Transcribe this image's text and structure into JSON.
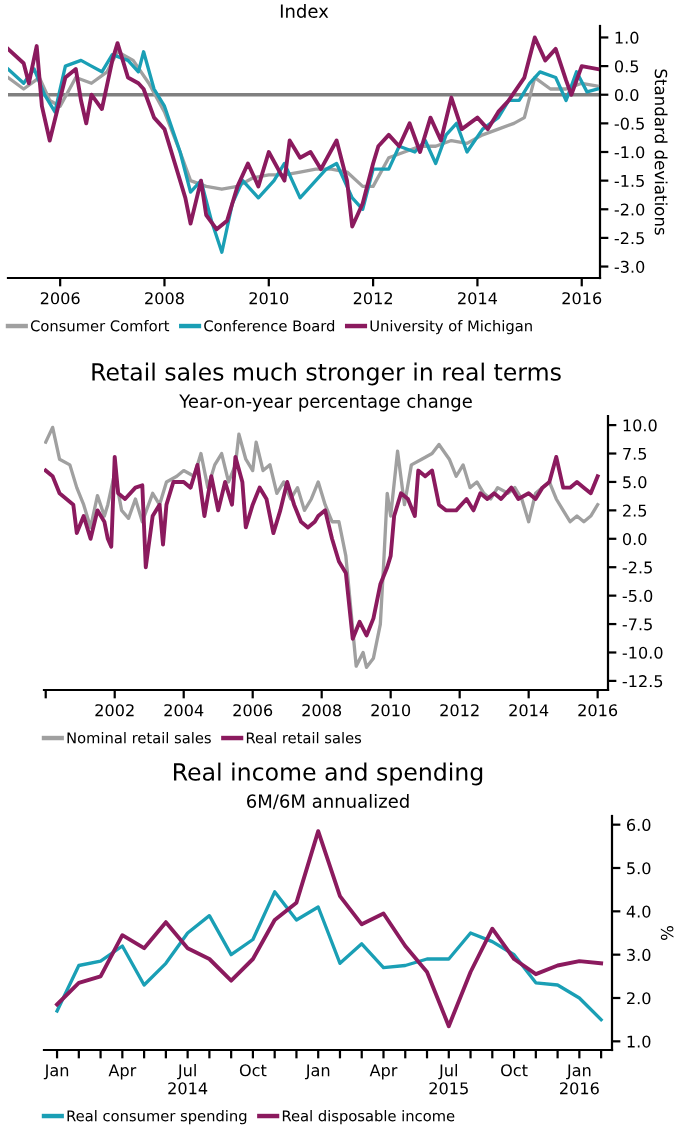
{
  "chart_data": [
    {
      "type": "line",
      "subtitle": "Index",
      "ylabel": "Standard deviations",
      "legend": "bottom",
      "xlim": [
        2005.0,
        2016.35
      ],
      "ylim": [
        -3.2,
        1.2
      ],
      "xticks": [
        2006,
        2008,
        2010,
        2012,
        2014,
        2016
      ],
      "yticks": [
        {
          "value": 1,
          "label": "1.0"
        },
        0.5,
        {
          "value": 0,
          "label": "0.0"
        },
        -0.5,
        {
          "value": -1,
          "label": "-1.0"
        },
        -1.5,
        {
          "value": -2,
          "label": "-2.0"
        },
        -2.5,
        {
          "value": -3,
          "label": "-3.0"
        }
      ],
      "ref_lines": [
        {
          "axis": "y",
          "value": 0,
          "color": "#808080"
        }
      ],
      "series": [
        {
          "name": "Consumer Comfort",
          "color": "#a0a0a0",
          "x": [
            2005.0,
            2005.3,
            2005.6,
            2005.8,
            2006.0,
            2006.3,
            2006.6,
            2006.9,
            2007.1,
            2007.4,
            2007.7,
            2008.0,
            2008.3,
            2008.5,
            2008.8,
            2009.1,
            2009.4,
            2009.7,
            2010.0,
            2010.3,
            2010.6,
            2010.9,
            2011.2,
            2011.5,
            2011.8,
            2012.0,
            2012.3,
            2012.6,
            2012.9,
            2013.2,
            2013.5,
            2013.8,
            2014.1,
            2014.4,
            2014.7,
            2014.9,
            2015.1,
            2015.4,
            2015.7,
            2016.0,
            2016.3
          ],
          "values": [
            0.3,
            0.1,
            0.3,
            -0.1,
            -0.2,
            0.3,
            0.2,
            0.4,
            0.75,
            0.6,
            0.2,
            -0.3,
            -1.0,
            -1.5,
            -1.6,
            -1.65,
            -1.6,
            -1.45,
            -1.4,
            -1.4,
            -1.35,
            -1.3,
            -1.3,
            -1.35,
            -1.6,
            -1.6,
            -1.1,
            -1.0,
            -0.9,
            -0.9,
            -0.8,
            -0.85,
            -0.7,
            -0.6,
            -0.5,
            -0.4,
            0.3,
            0.1,
            0.1,
            0.2,
            0.15
          ]
        },
        {
          "name": "Conference Board",
          "color": "#1a9fb5",
          "x": [
            2005.0,
            2005.3,
            2005.5,
            2005.7,
            2005.9,
            2006.1,
            2006.4,
            2006.6,
            2006.8,
            2007.0,
            2007.3,
            2007.5,
            2007.6,
            2007.8,
            2008.0,
            2008.3,
            2008.5,
            2008.7,
            2008.9,
            2009.1,
            2009.3,
            2009.5,
            2009.8,
            2010.1,
            2010.3,
            2010.6,
            2010.9,
            2011.1,
            2011.3,
            2011.6,
            2011.8,
            2012.0,
            2012.3,
            2012.5,
            2012.8,
            2013.0,
            2013.2,
            2013.4,
            2013.6,
            2013.8,
            2014.1,
            2014.4,
            2014.6,
            2014.8,
            2015.0,
            2015.2,
            2015.5,
            2015.7,
            2015.9,
            2016.1,
            2016.3
          ],
          "values": [
            0.45,
            0.2,
            0.45,
            0.0,
            -0.3,
            0.5,
            0.6,
            0.5,
            0.4,
            0.7,
            0.6,
            0.4,
            0.75,
            0.1,
            -0.2,
            -1.0,
            -1.7,
            -1.5,
            -2.2,
            -2.75,
            -1.9,
            -1.5,
            -1.8,
            -1.5,
            -1.2,
            -1.8,
            -1.5,
            -1.3,
            -1.2,
            -1.8,
            -2.0,
            -1.3,
            -1.3,
            -0.9,
            -1.0,
            -0.8,
            -1.2,
            -0.7,
            -0.5,
            -1.0,
            -0.6,
            -0.4,
            -0.1,
            -0.1,
            0.2,
            0.4,
            0.3,
            -0.1,
            0.4,
            0.05,
            0.1
          ]
        },
        {
          "name": "University of Michigan",
          "color": "#8b1a5e",
          "x": [
            2005.0,
            2005.3,
            2005.4,
            2005.55,
            2005.65,
            2005.8,
            2006.1,
            2006.3,
            2006.4,
            2006.5,
            2006.6,
            2006.8,
            2007.0,
            2007.1,
            2007.3,
            2007.5,
            2007.6,
            2007.8,
            2008.0,
            2008.2,
            2008.4,
            2008.5,
            2008.7,
            2008.8,
            2009.0,
            2009.2,
            2009.4,
            2009.6,
            2009.8,
            2010.0,
            2010.3,
            2010.4,
            2010.6,
            2010.8,
            2011.0,
            2011.3,
            2011.5,
            2011.6,
            2011.8,
            2012.0,
            2012.1,
            2012.3,
            2012.5,
            2012.7,
            2012.9,
            2013.1,
            2013.3,
            2013.5,
            2013.7,
            2014.0,
            2014.2,
            2014.4,
            2014.6,
            2014.9,
            2015.1,
            2015.3,
            2015.5,
            2015.7,
            2015.8,
            2016.0,
            2016.3
          ],
          "values": [
            0.8,
            0.55,
            0.2,
            0.85,
            -0.2,
            -0.8,
            0.3,
            0.45,
            -0.1,
            -0.5,
            0.0,
            -0.25,
            0.6,
            0.9,
            0.3,
            0.2,
            0.1,
            -0.4,
            -0.6,
            -1.2,
            -1.8,
            -2.25,
            -1.5,
            -2.1,
            -2.35,
            -2.2,
            -1.6,
            -1.2,
            -1.6,
            -1.0,
            -1.5,
            -0.8,
            -1.1,
            -1.0,
            -1.3,
            -0.8,
            -1.5,
            -2.3,
            -1.9,
            -1.2,
            -0.9,
            -0.7,
            -0.9,
            -0.5,
            -1.0,
            -0.4,
            -0.8,
            -0.05,
            -0.6,
            -0.4,
            -0.6,
            -0.3,
            -0.1,
            0.3,
            1.0,
            0.6,
            0.8,
            0.25,
            0.0,
            0.5,
            0.45
          ]
        }
      ]
    },
    {
      "type": "line",
      "title": "Retail sales much stronger in real terms",
      "subtitle": "Year-on-year percentage change",
      "legend": "bottom",
      "xlim": [
        1999.95,
        2016.3
      ],
      "ylim": [
        -13.3,
        10.8
      ],
      "xticks": [
        {
          "value": 2000,
          "label": null
        },
        2002,
        2004,
        2006,
        2008,
        2010,
        2012,
        2014,
        2016
      ],
      "yticks": [
        {
          "value": 10,
          "label": "10.0"
        },
        7.5,
        {
          "value": 5,
          "label": "5.0"
        },
        2.5,
        {
          "value": 0,
          "label": "0.0"
        },
        -2.5,
        {
          "value": -5,
          "label": "-5.0"
        },
        -7.5,
        {
          "value": -10,
          "label": "-10.0"
        },
        -12.5
      ],
      "series": [
        {
          "name": "Nominal retail sales",
          "color": "#a0a0a0",
          "x": [
            2000.0,
            2000.2,
            2000.4,
            2000.7,
            2000.9,
            2001.1,
            2001.3,
            2001.5,
            2001.7,
            2001.8,
            2002.0,
            2002.2,
            2002.4,
            2002.6,
            2002.8,
            2003.1,
            2003.3,
            2003.5,
            2003.8,
            2004.0,
            2004.3,
            2004.5,
            2004.7,
            2004.9,
            2005.1,
            2005.3,
            2005.5,
            2005.6,
            2005.8,
            2006.0,
            2006.1,
            2006.3,
            2006.5,
            2006.7,
            2006.9,
            2007.1,
            2007.3,
            2007.5,
            2007.7,
            2007.9,
            2008.1,
            2008.3,
            2008.5,
            2008.7,
            2008.9,
            2009.0,
            2009.2,
            2009.3,
            2009.5,
            2009.7,
            2009.8,
            2009.9,
            2010.0,
            2010.2,
            2010.4,
            2010.6,
            2010.9,
            2011.2,
            2011.4,
            2011.7,
            2011.9,
            2012.1,
            2012.3,
            2012.5,
            2012.7,
            2012.9,
            2013.1,
            2013.4,
            2013.6,
            2013.8,
            2014.0,
            2014.2,
            2014.4,
            2014.6,
            2014.8,
            2015.0,
            2015.2,
            2015.4,
            2015.6,
            2015.8,
            2016.0
          ],
          "values": [
            8.5,
            9.8,
            7.0,
            6.5,
            4.5,
            3.0,
            1.0,
            3.8,
            2.0,
            3.0,
            5.8,
            2.5,
            1.8,
            3.5,
            1.5,
            4.0,
            3.0,
            5.0,
            5.5,
            6.0,
            5.5,
            7.5,
            4.5,
            6.5,
            7.5,
            5.0,
            6.5,
            9.2,
            7.0,
            6.0,
            8.5,
            6.0,
            6.5,
            4.0,
            5.0,
            3.5,
            4.5,
            2.5,
            3.5,
            5.0,
            3.0,
            1.5,
            1.5,
            -1.5,
            -8.0,
            -11.2,
            -10.0,
            -11.3,
            -10.5,
            -7.5,
            -2.0,
            4.0,
            2.0,
            7.7,
            3.0,
            6.5,
            7.0,
            7.5,
            8.3,
            7.0,
            5.5,
            6.5,
            4.5,
            5.0,
            4.0,
            3.5,
            4.5,
            4.0,
            4.5,
            3.5,
            1.5,
            4.0,
            4.5,
            5.0,
            3.5,
            2.5,
            1.5,
            2.0,
            1.5,
            2.0,
            3.0
          ]
        },
        {
          "name": "Real retail sales",
          "color": "#8b1a5e",
          "x": [
            2000.0,
            2000.2,
            2000.4,
            2000.6,
            2000.8,
            2000.9,
            2001.1,
            2001.3,
            2001.5,
            2001.7,
            2001.8,
            2001.9,
            2002.0,
            2002.1,
            2002.3,
            2002.6,
            2002.8,
            2002.9,
            2003.1,
            2003.3,
            2003.4,
            2003.5,
            2003.7,
            2004.0,
            2004.2,
            2004.4,
            2004.6,
            2004.8,
            2005.0,
            2005.2,
            2005.4,
            2005.5,
            2005.7,
            2005.8,
            2006.0,
            2006.2,
            2006.4,
            2006.6,
            2006.8,
            2007.0,
            2007.2,
            2007.4,
            2007.6,
            2007.8,
            2007.9,
            2008.1,
            2008.3,
            2008.5,
            2008.7,
            2008.9,
            2009.1,
            2009.3,
            2009.5,
            2009.7,
            2009.9,
            2010.0,
            2010.1,
            2010.3,
            2010.5,
            2010.7,
            2010.8,
            2011.0,
            2011.2,
            2011.4,
            2011.6,
            2011.9,
            2012.2,
            2012.4,
            2012.6,
            2012.8,
            2013.0,
            2013.2,
            2013.5,
            2013.7,
            2014.0,
            2014.2,
            2014.4,
            2014.6,
            2014.8,
            2015.0,
            2015.2,
            2015.4,
            2015.6,
            2015.8,
            2016.0
          ],
          "values": [
            6.0,
            5.5,
            4.0,
            3.5,
            3.0,
            0.5,
            2.0,
            0.0,
            2.5,
            1.5,
            0.0,
            -0.7,
            7.2,
            4.0,
            3.5,
            4.5,
            4.7,
            -2.5,
            2.0,
            3.0,
            -0.5,
            3.0,
            5.0,
            5.0,
            4.5,
            6.5,
            2.0,
            5.5,
            2.5,
            5.0,
            3.0,
            7.2,
            5.0,
            1.0,
            3.0,
            4.5,
            3.5,
            0.5,
            2.5,
            5.0,
            3.0,
            1.5,
            1.0,
            1.5,
            2.0,
            2.5,
            0.0,
            -2.0,
            -3.0,
            -8.8,
            -7.3,
            -8.5,
            -7.0,
            -4.0,
            -2.5,
            -1.5,
            2.0,
            4.0,
            3.5,
            2.0,
            6.0,
            5.5,
            6.0,
            3.0,
            2.5,
            2.5,
            3.5,
            2.5,
            4.0,
            3.5,
            4.0,
            3.5,
            4.5,
            3.5,
            4.0,
            3.5,
            4.5,
            5.0,
            7.2,
            4.5,
            4.5,
            5.0,
            4.5,
            4.0,
            5.5
          ]
        }
      ]
    },
    {
      "type": "line",
      "title": "Real income and spending",
      "subtitle": "6M/6M annualized",
      "ylabel": "%",
      "legend": "bottom",
      "ylim": [
        0.8,
        6.2
      ],
      "yticks": [
        {
          "value": 1,
          "label": "1.0"
        },
        {
          "value": 2,
          "label": "2.0"
        },
        {
          "value": 3,
          "label": "3.0"
        },
        {
          "value": 4,
          "label": "4.0"
        },
        {
          "value": 5,
          "label": "5.0"
        },
        {
          "value": 6,
          "label": "6.0"
        }
      ],
      "categories": [
        "Jan",
        null,
        null,
        "Apr",
        null,
        null,
        "Jul\n2014",
        null,
        null,
        "Oct",
        null,
        null,
        "Jan",
        null,
        null,
        "Apr",
        null,
        null,
        "Jul\n2015",
        null,
        null,
        "Oct",
        null,
        null,
        "Jan\n2016",
        null
      ],
      "series": [
        {
          "name": "Real consumer spending",
          "color": "#1a9fb5",
          "values": [
            1.7,
            2.75,
            2.85,
            3.2,
            2.3,
            2.8,
            3.5,
            3.9,
            3.0,
            3.35,
            4.45,
            3.8,
            4.1,
            2.8,
            3.25,
            2.7,
            2.75,
            2.9,
            2.9,
            3.5,
            3.3,
            3.0,
            2.35,
            2.3,
            2.0,
            1.5
          ]
        },
        {
          "name": "Real disposable income",
          "color": "#8b1a5e",
          "values": [
            1.85,
            2.35,
            2.5,
            3.45,
            3.15,
            3.75,
            3.15,
            2.9,
            2.4,
            2.9,
            3.8,
            4.2,
            5.85,
            4.35,
            3.7,
            3.95,
            3.2,
            2.6,
            1.35,
            2.6,
            3.6,
            2.9,
            2.55,
            2.75,
            2.85,
            2.8
          ]
        }
      ]
    }
  ]
}
